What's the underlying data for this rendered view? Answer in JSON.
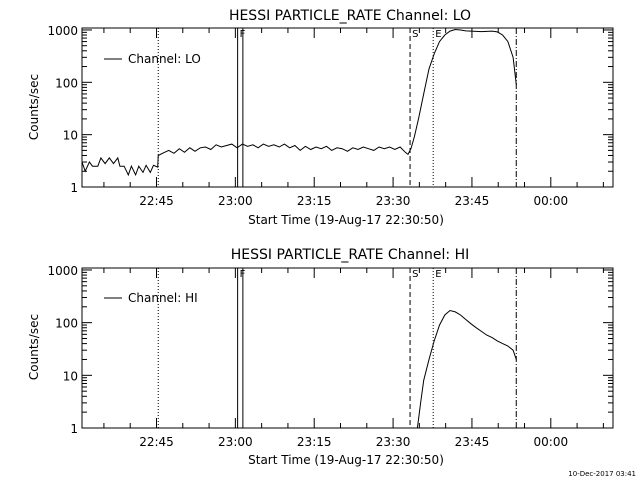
{
  "footer_timestamp": "10-Dec-2017 03:41",
  "chart_data": [
    {
      "type": "line",
      "title": "HESSI PARTICLE_RATE Channel: LO",
      "ylabel": "Counts/sec",
      "xlabel": "Start Time (19-Aug-17 22:30:50)",
      "y_scale": "log",
      "ylim": [
        1,
        1000
      ],
      "x_range_minutes": [
        0,
        101
      ],
      "x_ticks": [
        {
          "label": "22:45",
          "minute": 14.17
        },
        {
          "label": "23:00",
          "minute": 29.17
        },
        {
          "label": "23:15",
          "minute": 44.17
        },
        {
          "label": "23:30",
          "minute": 59.17
        },
        {
          "label": "23:45",
          "minute": 74.17
        },
        {
          "label": "00:00",
          "minute": 89.17
        }
      ],
      "y_ticks": [
        {
          "label": "1",
          "value": 1
        },
        {
          "label": "10",
          "value": 10
        },
        {
          "label": "100",
          "value": 100
        },
        {
          "label": "1000",
          "value": 1000
        }
      ],
      "legend": {
        "text": "Channel: LO",
        "placement": "top-left"
      },
      "markers": [
        {
          "label": "F",
          "style": "solid",
          "minute": 29.6
        },
        {
          "label": "",
          "style": "solid",
          "minute": 30.6
        },
        {
          "label": "",
          "style": "dotted",
          "minute": 14.5
        },
        {
          "label": "S",
          "style": "dashed",
          "minute": 62.4
        },
        {
          "label": "E",
          "style": "dotted",
          "minute": 66.8
        },
        {
          "label": "",
          "style": "dashdot",
          "minute": 82.6
        }
      ],
      "series": [
        {
          "values": [
            [
              0,
              3
            ],
            [
              0.6,
              2
            ],
            [
              1.4,
              3
            ],
            [
              2,
              2.5
            ],
            [
              3,
              2.5
            ],
            [
              3.6,
              3.6
            ],
            [
              4.4,
              2.8
            ],
            [
              5.2,
              3.6
            ],
            [
              6,
              2.8
            ],
            [
              6.8,
              3.6
            ],
            [
              7.2,
              2.5
            ],
            [
              8,
              2.5
            ],
            [
              8.8,
              1.7
            ],
            [
              9.4,
              2.5
            ],
            [
              10.2,
              1.7
            ],
            [
              10.8,
              2.5
            ],
            [
              11.6,
              1.9
            ],
            [
              12.2,
              2.6
            ],
            [
              13,
              1.9
            ],
            [
              13.6,
              2.6
            ],
            [
              14.4,
              2.4
            ],
            [
              14.5,
              4
            ],
            [
              15.5,
              4.5
            ],
            [
              16.5,
              5
            ],
            [
              17.5,
              4.4
            ],
            [
              18.5,
              5.4
            ],
            [
              19.5,
              4.6
            ],
            [
              20.5,
              5.6
            ],
            [
              21.5,
              4.8
            ],
            [
              22.5,
              5.6
            ],
            [
              23.5,
              5.8
            ],
            [
              24.5,
              5.2
            ],
            [
              25.5,
              6.4
            ],
            [
              26.5,
              5.8
            ],
            [
              27.5,
              6.2
            ],
            [
              28.5,
              6.6
            ],
            [
              29.5,
              5.6
            ],
            [
              30.5,
              6.6
            ],
            [
              31.5,
              6
            ],
            [
              32.5,
              6.4
            ],
            [
              33.5,
              5.6
            ],
            [
              34.5,
              6.6
            ],
            [
              35.5,
              6
            ],
            [
              36.5,
              6.4
            ],
            [
              37.5,
              5.8
            ],
            [
              38.5,
              6.6
            ],
            [
              39.5,
              5.6
            ],
            [
              40.5,
              6.2
            ],
            [
              41.5,
              5
            ],
            [
              42.5,
              6
            ],
            [
              43.5,
              5.2
            ],
            [
              44.5,
              5.8
            ],
            [
              45.5,
              5.4
            ],
            [
              46.5,
              6
            ],
            [
              47.5,
              5
            ],
            [
              48.5,
              5.6
            ],
            [
              49.5,
              5.4
            ],
            [
              50.5,
              4.8
            ],
            [
              51.5,
              5.6
            ],
            [
              52.5,
              5.2
            ],
            [
              53.5,
              5.8
            ],
            [
              54.5,
              5.4
            ],
            [
              55.5,
              5
            ],
            [
              56.5,
              5.8
            ],
            [
              57.5,
              5.4
            ],
            [
              58.5,
              5.8
            ],
            [
              59.5,
              5.2
            ],
            [
              60.5,
              5.8
            ],
            [
              61.5,
              4.6
            ],
            [
              62,
              4.2
            ],
            [
              62.6,
              5.5
            ],
            [
              63.2,
              9
            ],
            [
              64,
              20
            ],
            [
              65,
              60
            ],
            [
              66,
              180
            ],
            [
              67,
              350
            ],
            [
              68,
              600
            ],
            [
              69,
              800
            ],
            [
              70,
              950
            ],
            [
              71,
              1020
            ],
            [
              72,
              1000
            ],
            [
              73,
              960
            ],
            [
              74,
              950
            ],
            [
              75,
              940
            ],
            [
              76,
              930
            ],
            [
              77,
              940
            ],
            [
              78,
              950
            ],
            [
              79,
              920
            ],
            [
              80,
              800
            ],
            [
              81,
              600
            ],
            [
              82,
              300
            ],
            [
              82.6,
              90
            ]
          ]
        }
      ]
    },
    {
      "type": "line",
      "title": "HESSI PARTICLE_RATE Channel: HI",
      "ylabel": "Counts/sec",
      "xlabel": "Start Time (19-Aug-17 22:30:50)",
      "y_scale": "log",
      "ylim": [
        1,
        1000
      ],
      "x_range_minutes": [
        0,
        101
      ],
      "x_ticks": [
        {
          "label": "22:45",
          "minute": 14.17
        },
        {
          "label": "23:00",
          "minute": 29.17
        },
        {
          "label": "23:15",
          "minute": 44.17
        },
        {
          "label": "23:30",
          "minute": 59.17
        },
        {
          "label": "23:45",
          "minute": 74.17
        },
        {
          "label": "00:00",
          "minute": 89.17
        }
      ],
      "y_ticks": [
        {
          "label": "1",
          "value": 1
        },
        {
          "label": "10",
          "value": 10
        },
        {
          "label": "100",
          "value": 100
        },
        {
          "label": "1000",
          "value": 1000
        }
      ],
      "legend": {
        "text": "Channel: HI",
        "placement": "top-left"
      },
      "markers": [
        {
          "label": "F",
          "style": "solid",
          "minute": 29.6
        },
        {
          "label": "",
          "style": "solid",
          "minute": 30.6
        },
        {
          "label": "",
          "style": "dotted",
          "minute": 14.5
        },
        {
          "label": "S",
          "style": "dashed",
          "minute": 62.4
        },
        {
          "label": "E",
          "style": "dotted",
          "minute": 66.8
        },
        {
          "label": "",
          "style": "dashdot",
          "minute": 82.6
        }
      ],
      "series": [
        {
          "values": [
            [
              63.8,
              1
            ],
            [
              64.4,
              3
            ],
            [
              65,
              8
            ],
            [
              66,
              20
            ],
            [
              67,
              45
            ],
            [
              68,
              90
            ],
            [
              69,
              140
            ],
            [
              70,
              170
            ],
            [
              71,
              160
            ],
            [
              72,
              140
            ],
            [
              73,
              115
            ],
            [
              74,
              95
            ],
            [
              75,
              80
            ],
            [
              76,
              68
            ],
            [
              77,
              58
            ],
            [
              78,
              52
            ],
            [
              79,
              45
            ],
            [
              80,
              40
            ],
            [
              81,
              36
            ],
            [
              82,
              30
            ],
            [
              82.6,
              20
            ]
          ]
        }
      ]
    }
  ]
}
